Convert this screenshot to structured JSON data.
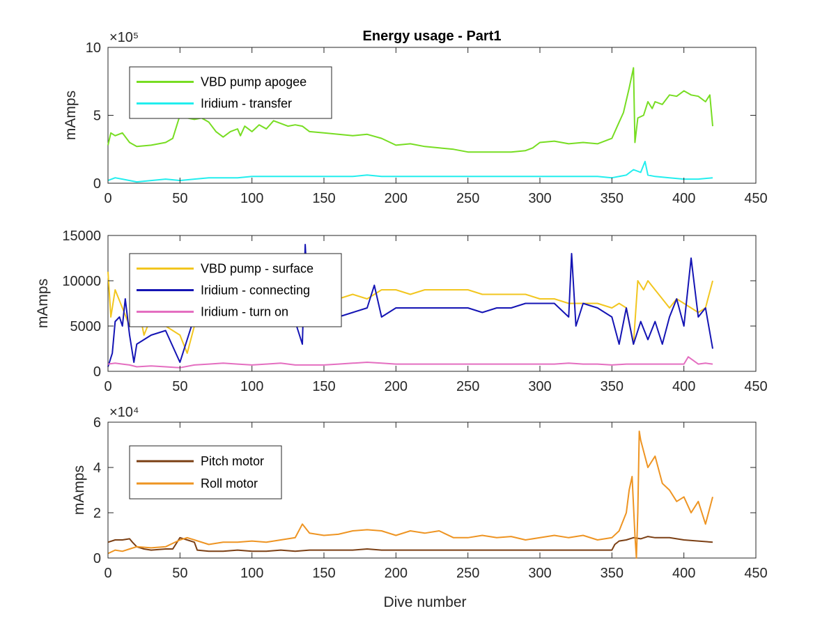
{
  "figure": {
    "title": "Energy usage - Part1"
  },
  "chart_data": [
    {
      "type": "line",
      "title": "Energy usage - Part1",
      "xlabel": "",
      "ylabel": "mAmps",
      "xlim": [
        0,
        450
      ],
      "ylim": [
        0,
        1000000
      ],
      "xticks": [
        0,
        50,
        100,
        150,
        200,
        250,
        300,
        350,
        400,
        450
      ],
      "xtick_labels": [
        "0",
        "50",
        "100",
        "150",
        "200",
        "250",
        "300",
        "350",
        "400",
        "450"
      ],
      "yticks": [
        0,
        500000,
        1000000
      ],
      "ytick_labels": [
        "0",
        "5",
        "10"
      ],
      "exponent_label": "×10⁵",
      "grid": false,
      "legend": "top-left",
      "series": [
        {
          "name": "VBD pump apogee",
          "color": "#77dd22",
          "x": [
            0,
            2,
            5,
            10,
            15,
            20,
            30,
            40,
            45,
            50,
            55,
            60,
            65,
            70,
            75,
            80,
            85,
            90,
            92,
            95,
            100,
            105,
            110,
            115,
            120,
            125,
            130,
            135,
            140,
            150,
            160,
            170,
            180,
            190,
            200,
            210,
            220,
            230,
            240,
            250,
            260,
            270,
            280,
            290,
            295,
            300,
            310,
            320,
            330,
            340,
            350,
            355,
            358,
            362,
            365,
            366,
            368,
            372,
            375,
            378,
            380,
            385,
            390,
            395,
            400,
            405,
            410,
            415,
            418,
            420
          ],
          "y": [
            280000,
            370000,
            350000,
            370000,
            300000,
            270000,
            280000,
            300000,
            330000,
            500000,
            480000,
            470000,
            480000,
            450000,
            380000,
            340000,
            380000,
            400000,
            350000,
            420000,
            380000,
            430000,
            400000,
            460000,
            440000,
            420000,
            430000,
            420000,
            380000,
            370000,
            360000,
            350000,
            360000,
            330000,
            280000,
            290000,
            270000,
            260000,
            250000,
            230000,
            230000,
            230000,
            230000,
            240000,
            260000,
            300000,
            310000,
            290000,
            300000,
            290000,
            330000,
            450000,
            520000,
            700000,
            850000,
            300000,
            480000,
            500000,
            600000,
            550000,
            600000,
            580000,
            650000,
            640000,
            680000,
            650000,
            640000,
            600000,
            650000,
            420000
          ]
        },
        {
          "name": "Iridium - transfer",
          "color": "#22eeee",
          "x": [
            0,
            5,
            10,
            15,
            20,
            30,
            40,
            50,
            60,
            70,
            80,
            90,
            100,
            110,
            120,
            130,
            140,
            150,
            160,
            170,
            180,
            190,
            200,
            210,
            220,
            230,
            240,
            250,
            260,
            270,
            280,
            290,
            300,
            310,
            320,
            330,
            340,
            350,
            360,
            365,
            370,
            373,
            375,
            380,
            390,
            400,
            410,
            420
          ],
          "y": [
            20000,
            40000,
            30000,
            20000,
            10000,
            20000,
            30000,
            20000,
            30000,
            40000,
            40000,
            40000,
            50000,
            50000,
            50000,
            50000,
            50000,
            50000,
            50000,
            50000,
            60000,
            50000,
            50000,
            50000,
            50000,
            50000,
            50000,
            50000,
            50000,
            50000,
            50000,
            50000,
            50000,
            50000,
            50000,
            50000,
            50000,
            40000,
            60000,
            100000,
            80000,
            160000,
            60000,
            50000,
            40000,
            30000,
            30000,
            40000
          ]
        }
      ]
    },
    {
      "type": "line",
      "title": "",
      "xlabel": "",
      "ylabel": "mAmps",
      "xlim": [
        0,
        450
      ],
      "ylim": [
        0,
        15000
      ],
      "xticks": [
        0,
        50,
        100,
        150,
        200,
        250,
        300,
        350,
        400,
        450
      ],
      "xtick_labels": [
        "0",
        "50",
        "100",
        "150",
        "200",
        "250",
        "300",
        "350",
        "400",
        "450"
      ],
      "yticks": [
        0,
        5000,
        10000,
        15000
      ],
      "ytick_labels": [
        "0",
        "5000",
        "10000",
        "15000"
      ],
      "exponent_label": "",
      "grid": false,
      "legend": "top-left",
      "series": [
        {
          "name": "VBD pump - surface",
          "color": "#f2c61f",
          "x": [
            0,
            2,
            5,
            10,
            15,
            20,
            25,
            30,
            40,
            45,
            50,
            55,
            60,
            70,
            80,
            90,
            100,
            110,
            120,
            130,
            140,
            150,
            160,
            170,
            180,
            190,
            200,
            210,
            220,
            230,
            240,
            250,
            260,
            270,
            280,
            290,
            300,
            310,
            320,
            330,
            340,
            350,
            355,
            360,
            365,
            368,
            372,
            375,
            380,
            385,
            390,
            395,
            400,
            405,
            410,
            415,
            420
          ],
          "y": [
            11000,
            6000,
            9000,
            7000,
            5000,
            8000,
            4000,
            6000,
            5000,
            4500,
            4000,
            2000,
            5000,
            6000,
            5500,
            6000,
            6500,
            7000,
            6000,
            6500,
            7000,
            7500,
            8000,
            8500,
            8000,
            9000,
            9000,
            8500,
            9000,
            9000,
            9000,
            9000,
            8500,
            8500,
            8500,
            8500,
            8000,
            8000,
            7500,
            7500,
            7500,
            7000,
            7500,
            7000,
            3000,
            10000,
            9000,
            10000,
            9000,
            8000,
            7000,
            8000,
            7500,
            7000,
            6500,
            7000,
            10000
          ]
        },
        {
          "name": "Iridium - connecting",
          "color": "#1414b4",
          "x": [
            0,
            3,
            5,
            8,
            10,
            12,
            15,
            18,
            20,
            30,
            40,
            50,
            60,
            70,
            80,
            90,
            100,
            110,
            120,
            130,
            135,
            137,
            140,
            150,
            160,
            170,
            180,
            185,
            190,
            200,
            210,
            220,
            230,
            240,
            250,
            260,
            270,
            280,
            290,
            300,
            310,
            320,
            322,
            325,
            330,
            340,
            350,
            355,
            360,
            365,
            370,
            375,
            380,
            385,
            390,
            395,
            400,
            405,
            410,
            415,
            420
          ],
          "y": [
            500,
            2000,
            5500,
            6000,
            5000,
            8000,
            4000,
            1000,
            3000,
            4000,
            4500,
            1000,
            6000,
            5000,
            5500,
            5000,
            6000,
            6000,
            6000,
            5500,
            3000,
            14000,
            5000,
            6500,
            6000,
            6500,
            7000,
            9500,
            6000,
            7000,
            7000,
            7000,
            7000,
            7000,
            7000,
            6500,
            7000,
            7000,
            7500,
            7500,
            7500,
            6000,
            13000,
            5000,
            7500,
            7000,
            6000,
            3000,
            7000,
            3000,
            5500,
            3500,
            5500,
            3000,
            6000,
            8000,
            5000,
            12500,
            6000,
            7000,
            2500
          ]
        },
        {
          "name": "Iridium - turn on",
          "color": "#e46ec0",
          "x": [
            0,
            5,
            10,
            15,
            20,
            30,
            40,
            50,
            60,
            70,
            80,
            90,
            100,
            110,
            120,
            130,
            140,
            150,
            160,
            170,
            180,
            190,
            200,
            210,
            220,
            230,
            240,
            250,
            260,
            270,
            280,
            290,
            300,
            310,
            320,
            330,
            340,
            350,
            360,
            370,
            380,
            390,
            400,
            403,
            410,
            415,
            420
          ],
          "y": [
            800,
            900,
            800,
            700,
            500,
            600,
            500,
            400,
            700,
            800,
            900,
            800,
            700,
            800,
            900,
            700,
            700,
            700,
            800,
            900,
            1000,
            900,
            800,
            800,
            800,
            800,
            800,
            800,
            800,
            800,
            800,
            800,
            800,
            800,
            900,
            800,
            800,
            700,
            800,
            800,
            800,
            800,
            800,
            1600,
            800,
            900,
            800
          ]
        }
      ]
    },
    {
      "type": "line",
      "title": "",
      "xlabel": "Dive number",
      "ylabel": "mAmps",
      "xlim": [
        0,
        450
      ],
      "ylim": [
        0,
        60000
      ],
      "xticks": [
        0,
        50,
        100,
        150,
        200,
        250,
        300,
        350,
        400,
        450
      ],
      "xtick_labels": [
        "0",
        "50",
        "100",
        "150",
        "200",
        "250",
        "300",
        "350",
        "400",
        "450"
      ],
      "yticks": [
        0,
        20000,
        40000,
        60000
      ],
      "ytick_labels": [
        "0",
        "2",
        "4",
        "6"
      ],
      "exponent_label": "×10⁴",
      "grid": false,
      "legend": "top-left",
      "series": [
        {
          "name": "Pitch motor",
          "color": "#7b3f14",
          "x": [
            0,
            5,
            10,
            15,
            17,
            20,
            25,
            30,
            40,
            45,
            50,
            55,
            60,
            62,
            70,
            80,
            90,
            100,
            110,
            120,
            130,
            140,
            150,
            160,
            170,
            180,
            190,
            200,
            210,
            220,
            230,
            240,
            250,
            260,
            270,
            280,
            290,
            300,
            310,
            320,
            330,
            340,
            350,
            352,
            355,
            360,
            365,
            370,
            375,
            380,
            390,
            400,
            410,
            420
          ],
          "y": [
            7000,
            8000,
            8000,
            8500,
            7000,
            5000,
            4000,
            3500,
            4000,
            4000,
            9000,
            8000,
            7000,
            3500,
            3000,
            3000,
            3500,
            3000,
            3000,
            3500,
            3000,
            3500,
            3500,
            3500,
            3500,
            4000,
            3500,
            3500,
            3500,
            3500,
            3500,
            3500,
            3500,
            3500,
            3500,
            3500,
            3500,
            3500,
            3500,
            3500,
            3500,
            3500,
            3500,
            6000,
            7500,
            8000,
            9000,
            8500,
            9500,
            9000,
            9000,
            8000,
            7500,
            7000
          ]
        },
        {
          "name": "Roll motor",
          "color": "#ee9422",
          "x": [
            0,
            5,
            10,
            15,
            20,
            30,
            40,
            50,
            55,
            60,
            70,
            80,
            90,
            100,
            110,
            120,
            130,
            135,
            140,
            150,
            160,
            170,
            180,
            190,
            200,
            210,
            220,
            230,
            240,
            250,
            260,
            270,
            280,
            290,
            300,
            310,
            320,
            330,
            340,
            350,
            355,
            360,
            362,
            364,
            366,
            367,
            368,
            369,
            370,
            375,
            380,
            385,
            390,
            395,
            400,
            405,
            410,
            415,
            420
          ],
          "y": [
            2000,
            3500,
            3000,
            4000,
            5000,
            4500,
            5000,
            8000,
            9000,
            8000,
            6000,
            7000,
            7000,
            7500,
            7000,
            8000,
            9000,
            15000,
            11000,
            10000,
            10500,
            12000,
            12500,
            12000,
            10000,
            12000,
            11000,
            12000,
            9000,
            9000,
            10000,
            9000,
            9500,
            8000,
            9000,
            10000,
            9000,
            10000,
            8000,
            9000,
            12000,
            20000,
            30000,
            36000,
            10000,
            0,
            20000,
            56000,
            52000,
            40000,
            45000,
            33000,
            30000,
            25000,
            27000,
            20000,
            25000,
            15000,
            27000
          ]
        }
      ]
    }
  ]
}
